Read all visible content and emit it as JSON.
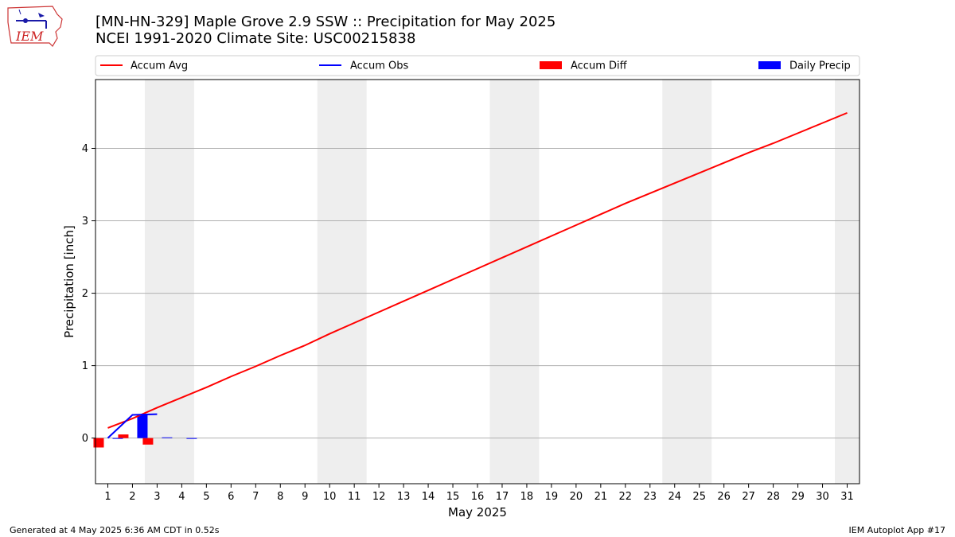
{
  "header": {
    "logo_text": "IEM",
    "title_line1": "[MN-HN-329] Maple Grove 2.9 SSW :: Precipitation for May 2025",
    "title_line2": "NCEI 1991-2020 Climate Site: USC00215838"
  },
  "footer": {
    "generated": "Generated at 4 May 2025 6:36 AM CDT in 0.52s",
    "app": "IEM Autoplot App #17"
  },
  "colors": {
    "accum_avg": "#ff0000",
    "accum_obs": "#0000ff",
    "accum_diff": "#ff0000",
    "daily_precip": "#0000ff",
    "weekend_shade": "#eeeeee",
    "grid": "#b0b0b0"
  },
  "chart_data": {
    "type": "line",
    "title": "[MN-HN-329] Maple Grove 2.9 SSW :: Precipitation for May 2025",
    "subtitle": "NCEI 1991-2020 Climate Site: USC00215838",
    "xlabel": "May 2025",
    "ylabel": "Precipitation [inch]",
    "xlim": [
      0.5,
      31.5
    ],
    "ylim": [
      -0.63,
      4.95
    ],
    "x_ticks": [
      1,
      2,
      3,
      4,
      5,
      6,
      7,
      8,
      9,
      10,
      11,
      12,
      13,
      14,
      15,
      16,
      17,
      18,
      19,
      20,
      21,
      22,
      23,
      24,
      25,
      26,
      27,
      28,
      29,
      30,
      31
    ],
    "y_ticks": [
      0,
      1,
      2,
      3,
      4
    ],
    "grid": "y",
    "legend_position": "top",
    "legend": [
      "Accum Avg",
      "Accum Obs",
      "Accum Diff",
      "Daily Precip"
    ],
    "weekend_shading": [
      [
        2.5,
        4.5
      ],
      [
        9.5,
        11.5
      ],
      [
        16.5,
        18.5
      ],
      [
        23.5,
        25.5
      ],
      [
        30.5,
        31.5
      ]
    ],
    "series": [
      {
        "name": "Accum Avg",
        "kind": "line",
        "x": [
          1,
          2,
          3,
          4,
          5,
          6,
          7,
          8,
          9,
          10,
          11,
          12,
          13,
          14,
          15,
          16,
          17,
          18,
          19,
          20,
          21,
          22,
          23,
          24,
          25,
          26,
          27,
          28,
          29,
          30,
          31
        ],
        "values": [
          0.14,
          0.27,
          0.42,
          0.56,
          0.7,
          0.85,
          0.99,
          1.14,
          1.28,
          1.44,
          1.59,
          1.74,
          1.89,
          2.04,
          2.19,
          2.34,
          2.49,
          2.64,
          2.79,
          2.94,
          3.09,
          3.24,
          3.38,
          3.52,
          3.66,
          3.8,
          3.94,
          4.07,
          4.21,
          4.35,
          4.49
        ]
      },
      {
        "name": "Accum Obs",
        "kind": "line",
        "x": [
          1,
          2,
          3
        ],
        "values": [
          0.0,
          0.32,
          0.33
        ]
      },
      {
        "name": "Accum Diff",
        "kind": "bar",
        "x": [
          1,
          2,
          3
        ],
        "values": [
          -0.13,
          0.05,
          -0.09
        ]
      },
      {
        "name": "Daily Precip",
        "kind": "bar",
        "x": [
          1,
          2,
          3,
          4
        ],
        "values": [
          0.0,
          0.32,
          0.01,
          0.0
        ]
      }
    ]
  }
}
